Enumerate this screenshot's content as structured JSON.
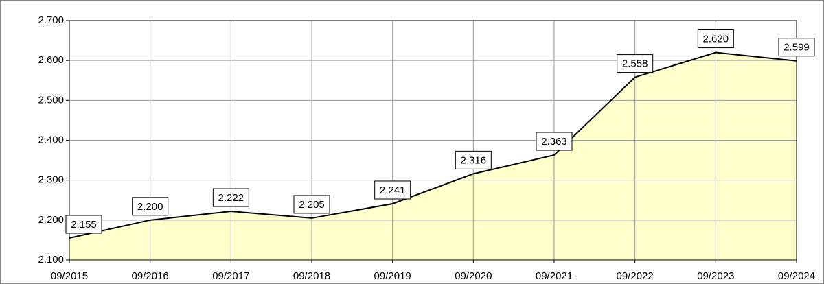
{
  "chart_data": {
    "type": "area",
    "categories": [
      "09/2015",
      "09/2016",
      "09/2017",
      "09/2018",
      "09/2019",
      "09/2020",
      "09/2021",
      "09/2022",
      "09/2023",
      "09/2024"
    ],
    "values": [
      2.155,
      2.2,
      2.222,
      2.205,
      2.241,
      2.316,
      2.363,
      2.558,
      2.62,
      2.599
    ],
    "value_labels": [
      "2.155",
      "2.200",
      "2.222",
      "2.205",
      "2.241",
      "2.316",
      "2.363",
      "2.558",
      "2.620",
      "2.599"
    ],
    "color": "#000000",
    "fill": "#ffffcc",
    "ylim": [
      2.1,
      2.7
    ],
    "yticks": [
      {
        "value": 2.1,
        "label": "2.100"
      },
      {
        "value": 2.2,
        "label": "2.200"
      },
      {
        "value": 2.3,
        "label": "2.300"
      },
      {
        "value": 2.4,
        "label": "2.400"
      },
      {
        "value": 2.5,
        "label": "2.500"
      },
      {
        "value": 2.6,
        "label": "2.600"
      },
      {
        "value": 2.7,
        "label": "2.700"
      }
    ],
    "grid": true
  }
}
